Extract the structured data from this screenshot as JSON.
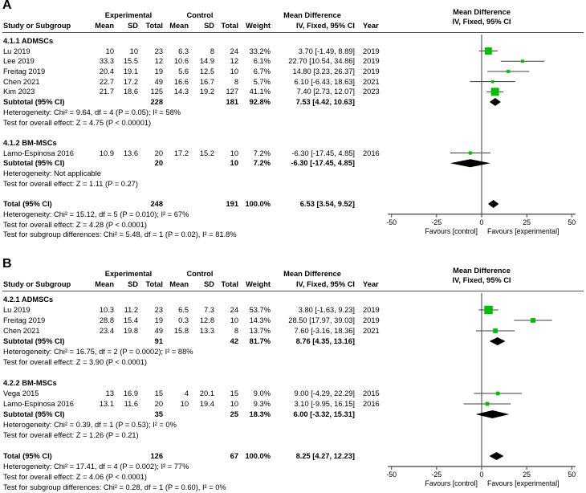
{
  "figure": {
    "kind": "meta-analysis forest plot",
    "colors": {
      "marker_green": "#00bd00",
      "diamond_black": "#000000",
      "ci_line": "#3d3d3d",
      "axis": "#3d3d3d",
      "rule": "#555555"
    }
  },
  "chart_data": {
    "type": "forest",
    "note": "Two-panel RevMan forest plot of mean differences (IV, Fixed, 95% CI)",
    "panels": [
      {
        "label": "A",
        "group_headers": {
          "experimental": "Experimental",
          "control": "Control",
          "md": "Mean Difference"
        },
        "plot_header_line1": "Mean Difference",
        "plot_header_line2": "IV, Fixed, 95% CI",
        "columns": [
          "Study or Subgroup",
          "Mean",
          "SD",
          "Total",
          "Mean",
          "SD",
          "Total",
          "Weight",
          "IV, Fixed, 95% CI",
          "Year"
        ],
        "axis": {
          "min": -50,
          "max": 50,
          "ticks": [
            "-50",
            "-25",
            "0",
            "25",
            "50"
          ],
          "favours_left": "Favours [control]",
          "favours_right": "Favours [experimental]"
        },
        "rows": [
          {
            "type": "section",
            "label": "4.1.1 ADMSCs"
          },
          {
            "type": "study",
            "cells": [
              "Lu 2019",
              "10",
              "10",
              "23",
              "6.3",
              "8",
              "24",
              "33.2%",
              "3.70 [-1.49, 8.89]",
              "2019"
            ],
            "est": 3.7,
            "lo": -1.49,
            "hi": 8.89,
            "weight": 33.2
          },
          {
            "type": "study",
            "cells": [
              "Lee 2019",
              "33.3",
              "15.5",
              "12",
              "10.6",
              "14.9",
              "12",
              "6.1%",
              "22.70 [10.54, 34.86]",
              "2019"
            ],
            "est": 22.7,
            "lo": 10.54,
            "hi": 34.86,
            "weight": 6.1
          },
          {
            "type": "study",
            "cells": [
              "Freitag 2019",
              "20.4",
              "19.1",
              "19",
              "5.6",
              "12.5",
              "10",
              "6.7%",
              "14.80 [3.23, 26.37]",
              "2019"
            ],
            "est": 14.8,
            "lo": 3.23,
            "hi": 26.37,
            "weight": 6.7
          },
          {
            "type": "study",
            "cells": [
              "Chen 2021",
              "22.7",
              "17.2",
              "49",
              "16.6",
              "16.7",
              "8",
              "5.7%",
              "6.10 [-6.43, 18.63]",
              "2021"
            ],
            "est": 6.1,
            "lo": -6.43,
            "hi": 18.63,
            "weight": 5.7
          },
          {
            "type": "study",
            "cells": [
              "Kim 2023",
              "21.7",
              "18.6",
              "125",
              "14.3",
              "19.2",
              "127",
              "41.1%",
              "7.40 [2.73, 12.07]",
              "2023"
            ],
            "est": 7.4,
            "lo": 2.73,
            "hi": 12.07,
            "weight": 41.1
          },
          {
            "type": "subtotal",
            "cells": [
              "Subtotal (95% CI)",
              "",
              "",
              "228",
              "",
              "",
              "181",
              "92.8%",
              "7.53 [4.42, 10.63]",
              ""
            ],
            "est": 7.53,
            "lo": 4.42,
            "hi": 10.63
          },
          {
            "type": "note",
            "label": "Heterogeneity: Chi² = 9.64, df = 4 (P = 0.05); I² = 58%"
          },
          {
            "type": "note",
            "label": "Test for overall effect: Z = 4.75 (P < 0.00001)"
          },
          {
            "type": "blank"
          },
          {
            "type": "section",
            "label": "4.1.2 BM-MSCs"
          },
          {
            "type": "study",
            "cells": [
              "Lamo-Espinosa 2016",
              "10.9",
              "13.6",
              "20",
              "17.2",
              "15.2",
              "10",
              "7.2%",
              "-6.30 [-17.45, 4.85]",
              "2016"
            ],
            "est": -6.3,
            "lo": -17.45,
            "hi": 4.85,
            "weight": 7.2
          },
          {
            "type": "subtotal",
            "cells": [
              "Subtotal (95% CI)",
              "",
              "",
              "20",
              "",
              "",
              "10",
              "7.2%",
              "-6.30 [-17.45, 4.85]",
              ""
            ],
            "est": -6.3,
            "lo": -17.45,
            "hi": 4.85
          },
          {
            "type": "note",
            "label": "Heterogeneity: Not applicable"
          },
          {
            "type": "note",
            "label": "Test for overall effect: Z = 1.11 (P = 0.27)"
          },
          {
            "type": "blank"
          },
          {
            "type": "total",
            "cells": [
              "Total (95% CI)",
              "",
              "",
              "248",
              "",
              "",
              "191",
              "100.0%",
              "6.53 [3.54, 9.52]",
              ""
            ],
            "est": 6.53,
            "lo": 3.54,
            "hi": 9.52
          },
          {
            "type": "note",
            "label": "Heterogeneity: Chi² = 15.12, df = 5 (P = 0.010); I² = 67%"
          },
          {
            "type": "note",
            "label": "Test for overall effect: Z = 4.28 (P < 0.0001)"
          },
          {
            "type": "note",
            "label": "Test for subgroup differences: Chi² = 5.48, df = 1 (P = 0.02), I² = 81.8%"
          }
        ]
      },
      {
        "label": "B",
        "group_headers": {
          "experimental": "Experimental",
          "control": "Control",
          "md": "Mean Difference"
        },
        "plot_header_line1": "Mean Difference",
        "plot_header_line2": "IV, Fixed, 95% CI",
        "columns": [
          "Study or Subgroup",
          "Mean",
          "SD",
          "Total",
          "Mean",
          "SD",
          "Total",
          "Weight",
          "IV, Fixed, 95% CI",
          "Year"
        ],
        "axis": {
          "min": -50,
          "max": 50,
          "ticks": [
            "-50",
            "-25",
            "0",
            "25",
            "50"
          ],
          "favours_left": "Favours [control]",
          "favours_right": "Favours [experimental]"
        },
        "rows": [
          {
            "type": "section",
            "label": "4.2.1 ADMSCs"
          },
          {
            "type": "study",
            "cells": [
              "Lu 2019",
              "10.3",
              "11.2",
              "23",
              "6.5",
              "7.3",
              "24",
              "53.7%",
              "3.80 [-1.63, 9.23]",
              "2019"
            ],
            "est": 3.8,
            "lo": -1.63,
            "hi": 9.23,
            "weight": 53.7
          },
          {
            "type": "study",
            "cells": [
              "Freitag 2019",
              "28.8",
              "15.4",
              "19",
              "0.3",
              "12.8",
              "10",
              "14.3%",
              "28.50 [17.97, 39.03]",
              "2019"
            ],
            "est": 28.5,
            "lo": 17.97,
            "hi": 39.03,
            "weight": 14.3
          },
          {
            "type": "study",
            "cells": [
              "Chen 2021",
              "23.4",
              "19.8",
              "49",
              "15.8",
              "13.3",
              "8",
              "13.7%",
              "7.60 [-3.16, 18.36]",
              "2021"
            ],
            "est": 7.6,
            "lo": -3.16,
            "hi": 18.36,
            "weight": 13.7
          },
          {
            "type": "subtotal",
            "cells": [
              "Subtotal (95% CI)",
              "",
              "",
              "91",
              "",
              "",
              "42",
              "81.7%",
              "8.76 [4.35, 13.16]",
              ""
            ],
            "est": 8.76,
            "lo": 4.35,
            "hi": 13.16
          },
          {
            "type": "note",
            "label": "Heterogeneity: Chi² = 16.75, df = 2 (P = 0.0002); I² = 88%"
          },
          {
            "type": "note",
            "label": "Test for overall effect: Z = 3.90 (P < 0.0001)"
          },
          {
            "type": "blank"
          },
          {
            "type": "section",
            "label": "4.2.2 BM-MSCs"
          },
          {
            "type": "study",
            "cells": [
              "Vega 2015",
              "13",
              "16.9",
              "15",
              "4",
              "20.1",
              "15",
              "9.0%",
              "9.00 [-4.29, 22.29]",
              "2015"
            ],
            "est": 9.0,
            "lo": -4.29,
            "hi": 22.29,
            "weight": 9.0
          },
          {
            "type": "study",
            "cells": [
              "Lamo-Espinosa 2016",
              "13.1",
              "11.6",
              "20",
              "10",
              "19.4",
              "10",
              "9.3%",
              "3.10 [-9.95, 16.15]",
              "2016"
            ],
            "est": 3.1,
            "lo": -9.95,
            "hi": 16.15,
            "weight": 9.3
          },
          {
            "type": "subtotal",
            "cells": [
              "Subtotal (95% CI)",
              "",
              "",
              "35",
              "",
              "",
              "25",
              "18.3%",
              "6.00 [-3.32, 15.31]",
              ""
            ],
            "est": 6.0,
            "lo": -3.32,
            "hi": 15.31
          },
          {
            "type": "note",
            "label": "Heterogeneity: Chi² = 0.39, df = 1 (P = 0.53); I² = 0%"
          },
          {
            "type": "note",
            "label": "Test for overall effect: Z = 1.26 (P = 0.21)"
          },
          {
            "type": "blank"
          },
          {
            "type": "total",
            "cells": [
              "Total (95% CI)",
              "",
              "",
              "126",
              "",
              "",
              "67",
              "100.0%",
              "8.25 [4.27, 12.23]",
              ""
            ],
            "est": 8.25,
            "lo": 4.27,
            "hi": 12.23
          },
          {
            "type": "note",
            "label": "Heterogeneity: Chi² = 17.41, df = 4 (P = 0.002); I² = 77%"
          },
          {
            "type": "note",
            "label": "Test for overall effect: Z = 4.06 (P < 0.0001)"
          },
          {
            "type": "note",
            "label": "Test for subgroup differences: Chi² = 0.28, df = 1 (P = 0.60), I² = 0%"
          }
        ]
      }
    ]
  }
}
